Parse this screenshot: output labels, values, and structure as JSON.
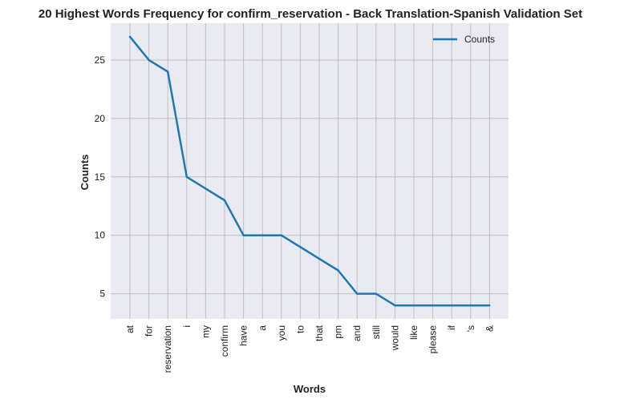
{
  "chart_data": {
    "type": "line",
    "title": "20 Highest Words Frequency for confirm_reservation - Back Translation-Spanish Validation Set",
    "xlabel": "Words",
    "ylabel": "Counts",
    "categories": [
      "at",
      "for",
      "reservation",
      "i",
      "my",
      "confirm",
      "have",
      "a",
      "you",
      "to",
      "that",
      "pm",
      "and",
      "still",
      "would",
      "like",
      "please",
      "if",
      "'s",
      "&"
    ],
    "series": [
      {
        "name": "Counts",
        "values": [
          27,
          25,
          24,
          15,
          14,
          13,
          10,
          10,
          10,
          9,
          8,
          7,
          5,
          5,
          4,
          4,
          4,
          4,
          4,
          4
        ]
      }
    ],
    "yticks": [
      5,
      10,
      15,
      20,
      25
    ],
    "ylim": [
      2.85,
      28.15
    ],
    "grid": true,
    "legend_position": "top-right",
    "colors": {
      "line": "#1f77b4",
      "plot_background": "#eaeaf2",
      "grid": "#c0c0c0"
    }
  }
}
